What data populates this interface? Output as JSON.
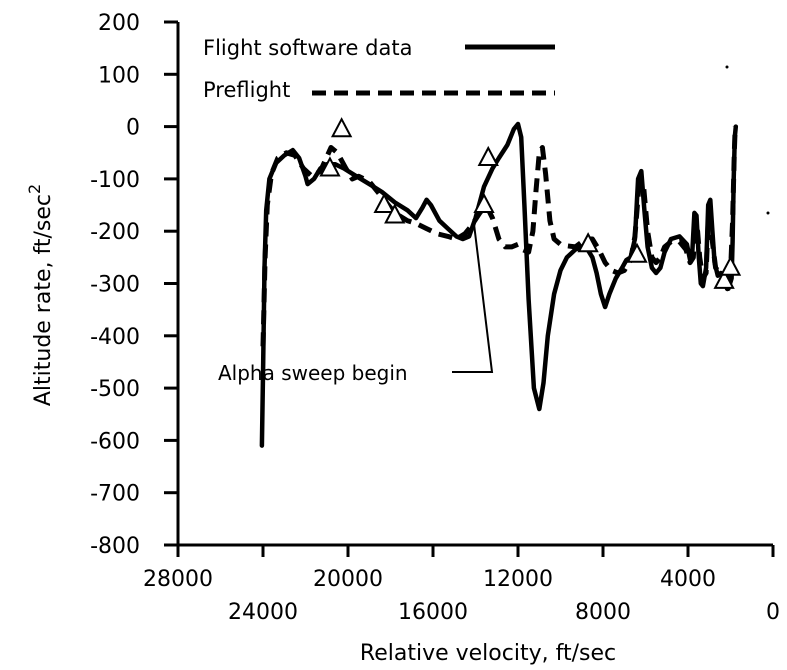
{
  "chart_data": {
    "type": "line",
    "xlabel": "Relative velocity, ft/sec",
    "ylabel": "Altitude rate,  ft/sec",
    "ylabel_superscript": "2",
    "xlim": [
      28000,
      0
    ],
    "ylim": [
      -800,
      200
    ],
    "x_ticks": [
      28000,
      24000,
      20000,
      16000,
      12000,
      8000,
      4000,
      0
    ],
    "x_tick_labels": [
      "28000",
      "24000",
      "20000",
      "16000",
      "12000",
      "8000",
      "4000",
      "0"
    ],
    "y_ticks": [
      200,
      100,
      0,
      -100,
      -200,
      -300,
      -400,
      -500,
      -600,
      -700,
      -800
    ],
    "y_tick_labels": [
      "200",
      "100",
      "0",
      "-100",
      "-200",
      "-300",
      "-400",
      "-500",
      "-600",
      "-700",
      "-800"
    ],
    "grid": false,
    "legend_placement": "top-left",
    "annotation": "Alpha sweep begin",
    "series": [
      {
        "name": "Flight software data",
        "style": "solid",
        "points": [
          [
            24050,
            -610
          ],
          [
            23990,
            -450
          ],
          [
            23930,
            -270
          ],
          [
            23850,
            -160
          ],
          [
            23700,
            -100
          ],
          [
            23400,
            -70
          ],
          [
            23000,
            -55
          ],
          [
            22600,
            -45
          ],
          [
            22300,
            -60
          ],
          [
            22000,
            -95
          ],
          [
            21900,
            -110
          ],
          [
            21600,
            -100
          ],
          [
            21300,
            -80
          ],
          [
            21000,
            -72
          ],
          [
            20600,
            -72
          ],
          [
            20200,
            -80
          ],
          [
            19600,
            -95
          ],
          [
            19000,
            -110
          ],
          [
            18400,
            -125
          ],
          [
            17800,
            -145
          ],
          [
            17200,
            -160
          ],
          [
            16800,
            -175
          ],
          [
            16500,
            -155
          ],
          [
            16300,
            -140
          ],
          [
            16100,
            -150
          ],
          [
            15700,
            -180
          ],
          [
            15300,
            -195
          ],
          [
            14900,
            -210
          ],
          [
            14600,
            -215
          ],
          [
            14300,
            -210
          ],
          [
            14000,
            -175
          ],
          [
            13600,
            -115
          ],
          [
            13200,
            -80
          ],
          [
            12900,
            -60
          ],
          [
            12500,
            -35
          ],
          [
            12200,
            -5
          ],
          [
            12000,
            5
          ],
          [
            11850,
            -20
          ],
          [
            11700,
            -150
          ],
          [
            11500,
            -330
          ],
          [
            11250,
            -500
          ],
          [
            11000,
            -540
          ],
          [
            10800,
            -490
          ],
          [
            10600,
            -400
          ],
          [
            10300,
            -320
          ],
          [
            10000,
            -275
          ],
          [
            9700,
            -250
          ],
          [
            9300,
            -235
          ],
          [
            9000,
            -230
          ],
          [
            8800,
            -230
          ],
          [
            8500,
            -250
          ],
          [
            8300,
            -280
          ],
          [
            8100,
            -320
          ],
          [
            7900,
            -345
          ],
          [
            7700,
            -320
          ],
          [
            7400,
            -290
          ],
          [
            7100,
            -270
          ],
          [
            6900,
            -255
          ],
          [
            6700,
            -250
          ],
          [
            6500,
            -215
          ],
          [
            6350,
            -100
          ],
          [
            6200,
            -85
          ],
          [
            6050,
            -160
          ],
          [
            5900,
            -230
          ],
          [
            5700,
            -270
          ],
          [
            5500,
            -280
          ],
          [
            5300,
            -270
          ],
          [
            5100,
            -240
          ],
          [
            4800,
            -215
          ],
          [
            4400,
            -210
          ],
          [
            4050,
            -225
          ],
          [
            3900,
            -255
          ],
          [
            3800,
            -240
          ],
          [
            3700,
            -165
          ],
          [
            3600,
            -170
          ],
          [
            3500,
            -245
          ],
          [
            3400,
            -300
          ],
          [
            3300,
            -305
          ],
          [
            3150,
            -270
          ],
          [
            3050,
            -150
          ],
          [
            2950,
            -140
          ],
          [
            2850,
            -200
          ],
          [
            2750,
            -260
          ],
          [
            2600,
            -285
          ],
          [
            2450,
            -280
          ],
          [
            2250,
            -300
          ],
          [
            2100,
            -310
          ],
          [
            1950,
            -290
          ],
          [
            1900,
            -220
          ],
          [
            1850,
            -100
          ],
          [
            1800,
            -20
          ],
          [
            1750,
            0
          ]
        ]
      },
      {
        "name": "Preflight",
        "style": "dashed",
        "points": [
          [
            24000,
            -420
          ],
          [
            23900,
            -250
          ],
          [
            23800,
            -150
          ],
          [
            23600,
            -90
          ],
          [
            23300,
            -60
          ],
          [
            22900,
            -50
          ],
          [
            22500,
            -55
          ],
          [
            22100,
            -80
          ],
          [
            21700,
            -95
          ],
          [
            21300,
            -85
          ],
          [
            20800,
            -40
          ],
          [
            20500,
            -50
          ],
          [
            20100,
            -80
          ],
          [
            19800,
            -100
          ],
          [
            19500,
            -95
          ],
          [
            19000,
            -105
          ],
          [
            18500,
            -130
          ],
          [
            18000,
            -155
          ],
          [
            17600,
            -170
          ],
          [
            17200,
            -180
          ],
          [
            16800,
            -185
          ],
          [
            16300,
            -195
          ],
          [
            15800,
            -205
          ],
          [
            15300,
            -210
          ],
          [
            14900,
            -215
          ],
          [
            14500,
            -205
          ],
          [
            14200,
            -190
          ],
          [
            13800,
            -165
          ],
          [
            13500,
            -150
          ],
          [
            13200,
            -175
          ],
          [
            12900,
            -215
          ],
          [
            12600,
            -230
          ],
          [
            12300,
            -230
          ],
          [
            12000,
            -225
          ],
          [
            11800,
            -235
          ],
          [
            11500,
            -240
          ],
          [
            11300,
            -200
          ],
          [
            11150,
            -120
          ],
          [
            11000,
            -50
          ],
          [
            10850,
            -40
          ],
          [
            10700,
            -90
          ],
          [
            10500,
            -180
          ],
          [
            10300,
            -215
          ],
          [
            10000,
            -225
          ],
          [
            9700,
            -228
          ],
          [
            9300,
            -230
          ],
          [
            8800,
            -215
          ],
          [
            8500,
            -215
          ],
          [
            8200,
            -235
          ],
          [
            7900,
            -260
          ],
          [
            7600,
            -275
          ],
          [
            7300,
            -280
          ],
          [
            7000,
            -275
          ],
          [
            6700,
            -255
          ],
          [
            6500,
            -210
          ],
          [
            6300,
            -110
          ],
          [
            6100,
            -110
          ],
          [
            5900,
            -200
          ],
          [
            5700,
            -250
          ],
          [
            5500,
            -260
          ],
          [
            5300,
            -250
          ],
          [
            5100,
            -230
          ],
          [
            4800,
            -220
          ],
          [
            4400,
            -220
          ],
          [
            4100,
            -235
          ],
          [
            3900,
            -260
          ],
          [
            3750,
            -250
          ],
          [
            3650,
            -190
          ],
          [
            3550,
            -200
          ],
          [
            3450,
            -250
          ],
          [
            3300,
            -290
          ],
          [
            3150,
            -280
          ],
          [
            3050,
            -180
          ],
          [
            2950,
            -170
          ],
          [
            2850,
            -220
          ],
          [
            2700,
            -270
          ],
          [
            2500,
            -280
          ],
          [
            2300,
            -290
          ],
          [
            2150,
            -310
          ],
          [
            2000,
            -280
          ],
          [
            1900,
            -180
          ],
          [
            1820,
            -50
          ],
          [
            1780,
            0
          ]
        ]
      }
    ],
    "markers": {
      "shape": "open-triangle",
      "points": [
        [
          20850,
          -80
        ],
        [
          20300,
          -5
        ],
        [
          18300,
          -150
        ],
        [
          17800,
          -170
        ],
        [
          13400,
          -60
        ],
        [
          13600,
          -150
        ],
        [
          8700,
          -225
        ],
        [
          6400,
          -245
        ],
        [
          2300,
          -295
        ],
        [
          2000,
          -270
        ]
      ]
    }
  }
}
